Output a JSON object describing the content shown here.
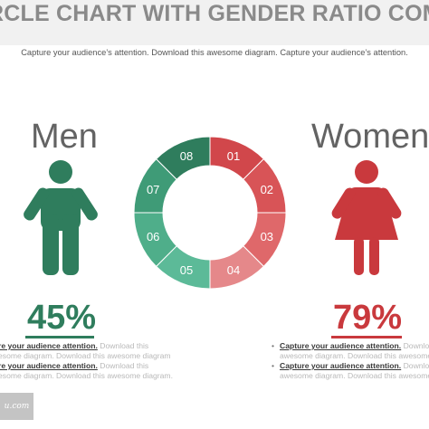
{
  "title": "RCLE CHART WITH GENDER RATIO COMPARISO",
  "subtitle": "Capture your audience’s attention. Download this awesome diagram. Capture your audience’s attention.",
  "men": {
    "label": "Men",
    "percent": "45%",
    "color": "#2f7d5d",
    "icon": "male-person-icon",
    "lines": [
      {
        "bold": "re your audience attention.",
        "rest": " Download this"
      },
      {
        "bold": "",
        "rest": "esome diagram. Download this awesome diagram"
      },
      {
        "bold": "re your audience attention.",
        "rest": " Download this"
      },
      {
        "bold": "",
        "rest": "esome diagram. Download this awesome diagram."
      }
    ]
  },
  "women": {
    "label": "Women",
    "percent": "79%",
    "color": "#c9393d",
    "icon": "female-person-icon",
    "lines": [
      {
        "bullet": "•",
        "bold": "Capture your audience attention.",
        "rest": " Download th"
      },
      {
        "bullet": "",
        "bold": "",
        "rest": "awesome diagram. Download this awesome"
      },
      {
        "bullet": "•",
        "bold": "Capture your audience attention.",
        "rest": " Downlo"
      },
      {
        "bullet": "",
        "bold": "",
        "rest": "awesome diagram. Download this awesome dia"
      }
    ]
  },
  "ring": {
    "segments": [
      {
        "label": "01",
        "color": "#d1474b"
      },
      {
        "label": "02",
        "color": "#d85457"
      },
      {
        "label": "03",
        "color": "#df686a"
      },
      {
        "label": "04",
        "color": "#e5888a"
      },
      {
        "label": "05",
        "color": "#5cba98"
      },
      {
        "label": "06",
        "color": "#4fae8a"
      },
      {
        "label": "07",
        "color": "#3f9b77"
      },
      {
        "label": "08",
        "color": "#2f7d5d"
      }
    ]
  },
  "logo": "u.com"
}
